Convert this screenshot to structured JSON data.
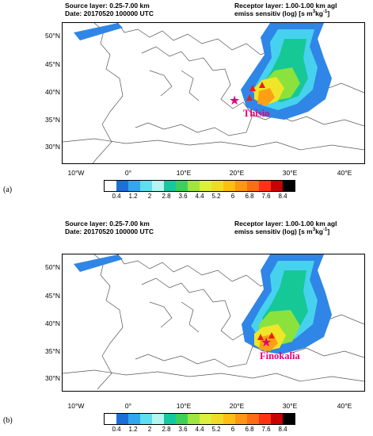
{
  "panels": [
    {
      "id": "a",
      "panel_label": "(a)",
      "source_layer": "Source layer: 0.25-7.00 km",
      "date": "Date: 20170520 100000 UTC",
      "receptor_layer": "Receptor layer: 1.00-1.00 km agl",
      "emiss_label": "emiss sensitiv (log) [s m",
      "emiss_sup": "3",
      "emiss_unit": "kg",
      "emiss_sup2": "-1",
      "emiss_close": "]",
      "site_name": "Thisio"
    },
    {
      "id": "b",
      "panel_label": "(b)",
      "source_layer": "Source layer: 0.25-7.00 km",
      "date": "Date: 20170520 100000 UTC",
      "receptor_layer": "Receptor layer: 1.00-1.00 km agl",
      "emiss_label": "emiss sensitiv (log) [s m",
      "emiss_sup": "3",
      "emiss_unit": "kg",
      "emiss_sup2": "-1",
      "emiss_close": "]",
      "site_name": "Finokalia"
    }
  ],
  "latitude_ticks": [
    "50°N",
    "45°N",
    "40°N",
    "35°N",
    "30°N"
  ],
  "longitude_ticks": [
    "10°W",
    "0°",
    "10°E",
    "20°E",
    "30°E",
    "40°E"
  ],
  "colorbar_ticks": [
    "0.4",
    "1.2",
    "2",
    "2.8",
    "3.6",
    "4.4",
    "5.2",
    "6",
    "6.8",
    "7.6",
    "8.4"
  ],
  "colorbar_colors": [
    "#ffffff",
    "#1e6ed8",
    "#30a8f0",
    "#5ce0f0",
    "#b4f5f0",
    "#14c8a0",
    "#3cd25a",
    "#a0e640",
    "#dcf03c",
    "#f0dc28",
    "#ffbe14",
    "#ff9614",
    "#ff6e14",
    "#ff3214",
    "#c80000",
    "#000000"
  ],
  "plume_colors": {
    "outer": "#2f86e6",
    "light": "#46d2ee",
    "mid": "#16c896",
    "green": "#8ce23c",
    "yellow": "#f0e628",
    "orange": "#ffa014",
    "red": "#e81e1e",
    "site": "#e3007a"
  }
}
